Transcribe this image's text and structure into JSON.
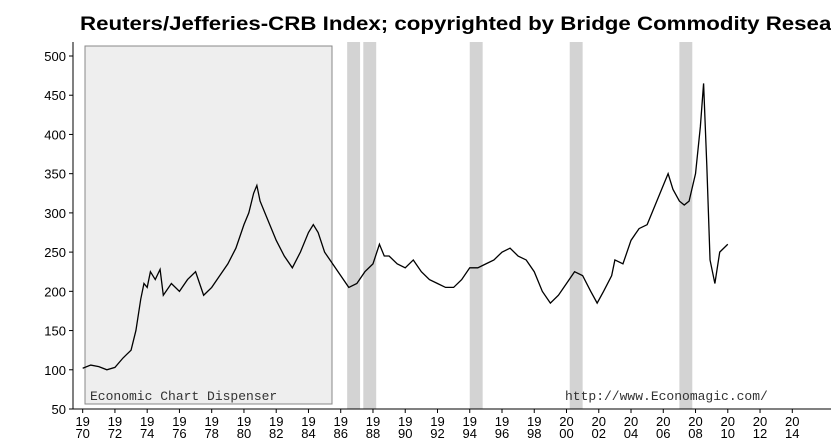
{
  "chart_data": {
    "type": "line",
    "title": "Reuters/Jefferies-CRB Index; copyrighted by Bridge Commodity Resear",
    "annotations": [
      "Economic Chart Dispenser",
      "http://www.Economagic.com/"
    ],
    "xlim": [
      1969.4,
      2016.4
    ],
    "ylim": [
      50,
      500
    ],
    "xticks": [
      1970,
      1972,
      1974,
      1976,
      1978,
      1980,
      1982,
      1984,
      1986,
      1988,
      1990,
      1992,
      1994,
      1996,
      1998,
      2000,
      2002,
      2004,
      2006,
      2008,
      2010,
      2012,
      2014
    ],
    "yticks": [
      50,
      100,
      150,
      200,
      250,
      300,
      350,
      400,
      450,
      500
    ],
    "grid": false,
    "shaded_periods": [
      [
        1986.4,
        1987.2
      ],
      [
        1987.4,
        1988.2
      ],
      [
        1994.0,
        1994.8
      ],
      [
        2000.2,
        2001.0
      ],
      [
        2007.0,
        2007.8
      ]
    ],
    "shade_color": "#d3d3d3",
    "series": [
      {
        "color": "#000000",
        "x": [
          1970,
          1970.5,
          1971,
          1971.5,
          1972,
          1972.5,
          1973,
          1973.3,
          1973.6,
          1973.8,
          1974,
          1974.2,
          1974.5,
          1974.8,
          1975,
          1975.5,
          1976,
          1976.5,
          1977,
          1977.5,
          1978,
          1978.5,
          1979,
          1979.5,
          1980,
          1980.3,
          1980.6,
          1980.8,
          1981,
          1981.5,
          1982,
          1982.5,
          1983,
          1983.5,
          1984,
          1984.3,
          1984.6,
          1985,
          1985.5,
          1986,
          1986.5,
          1987,
          1987.5,
          1988,
          1988.4,
          1988.7,
          1989,
          1989.5,
          1990,
          1990.5,
          1991,
          1991.5,
          1992,
          1992.5,
          1993,
          1993.5,
          1994,
          1994.5,
          1995,
          1995.5,
          1996,
          1996.5,
          1997,
          1997.5,
          1998,
          1998.5,
          1999,
          1999.5,
          2000,
          2000.5,
          2001,
          2001.5,
          2001.9,
          2002.3,
          2002.8,
          2003,
          2003.5,
          2004,
          2004.5,
          2005,
          2005.5,
          2006,
          2006.3,
          2006.6,
          2007,
          2007.3,
          2007.6,
          2008,
          2008.3,
          2008.5,
          2008.7,
          2008.9,
          2009.2,
          2009.5,
          2010
        ],
        "values": [
          102,
          106,
          104,
          100,
          103,
          115,
          125,
          150,
          190,
          210,
          205,
          225,
          215,
          228,
          195,
          210,
          200,
          215,
          225,
          195,
          205,
          220,
          235,
          255,
          285,
          300,
          325,
          335,
          315,
          290,
          265,
          245,
          230,
          250,
          275,
          285,
          275,
          250,
          235,
          220,
          205,
          210,
          225,
          235,
          260,
          245,
          245,
          235,
          230,
          240,
          225,
          215,
          210,
          205,
          205,
          215,
          230,
          230,
          235,
          240,
          250,
          255,
          245,
          240,
          225,
          200,
          185,
          195,
          210,
          225,
          220,
          200,
          185,
          200,
          220,
          240,
          235,
          265,
          280,
          285,
          310,
          335,
          350,
          330,
          315,
          310,
          315,
          350,
          410,
          465,
          360,
          240,
          210,
          250,
          260
        ]
      }
    ]
  }
}
